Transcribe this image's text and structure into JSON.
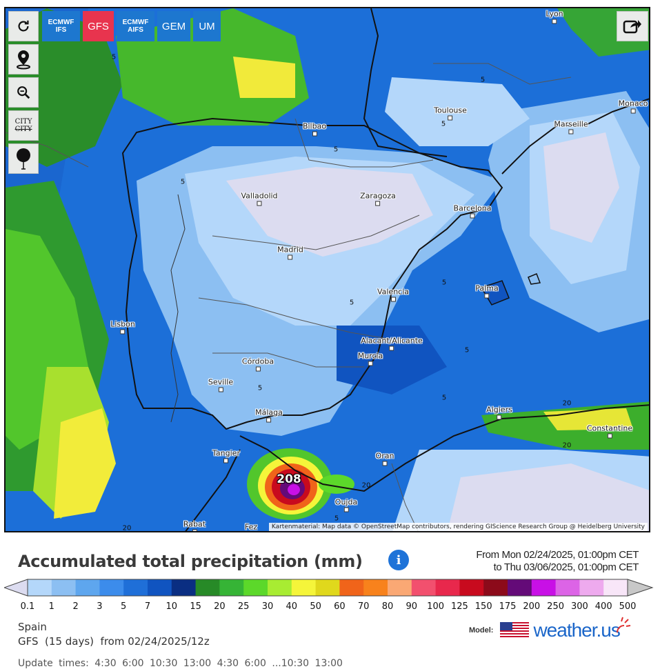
{
  "toolbar": {
    "refresh_icon": "refresh-icon",
    "models": [
      {
        "line1": "ECMWF",
        "line2": "IFS",
        "color": "#1d77cf",
        "active": false
      },
      {
        "line1": "GFS",
        "line2": "",
        "color": "#e8344e",
        "active": true
      },
      {
        "line1": "ECMWF",
        "line2": "AIFS",
        "color": "#1d77cf",
        "active": false
      },
      {
        "line1": "GEM",
        "line2": "",
        "color": "#1d77cf",
        "active": false
      },
      {
        "line1": "UM",
        "line2": "",
        "color": "#1d77cf",
        "active": false
      }
    ],
    "city_toggle_line1": "CITY",
    "city_toggle_line2": "CITY",
    "share_icon": "share-icon"
  },
  "map": {
    "cities": [
      {
        "name": "Lyon"
      },
      {
        "name": "Toulouse"
      },
      {
        "name": "Monaco"
      },
      {
        "name": "Marseille"
      },
      {
        "name": "Bilbao"
      },
      {
        "name": "Valladolid"
      },
      {
        "name": "Zaragoza"
      },
      {
        "name": "Barcelona"
      },
      {
        "name": "Madrid"
      },
      {
        "name": "Valencia"
      },
      {
        "name": "Palma"
      },
      {
        "name": "Lisbon"
      },
      {
        "name": "Alacant/Alicante"
      },
      {
        "name": "Murcia"
      },
      {
        "name": "Córdoba"
      },
      {
        "name": "Seville"
      },
      {
        "name": "Málaga"
      },
      {
        "name": "Algiers"
      },
      {
        "name": "Constantine"
      },
      {
        "name": "Tangier"
      },
      {
        "name": "Oran"
      },
      {
        "name": "Oujda"
      },
      {
        "name": "Rabat"
      },
      {
        "name": "Fez"
      }
    ],
    "contour_labels": [
      "5",
      "5",
      "5",
      "5",
      "5",
      "5",
      "5",
      "5",
      "5",
      "20",
      "20",
      "20",
      "5",
      "5",
      "20"
    ],
    "peak_value": "208",
    "attribution": "Kartenmaterial: Map data © OpenStreetMap contributors, rendering GIScience Research Group @ Heidelberg University"
  },
  "legend": {
    "title": "Accumulated total precipitation (mm)",
    "info_icon": "info-icon",
    "from_text": "From Mon 02/24/2025, 01:00pm CET",
    "to_text": "to Thu 03/06/2025, 01:00pm CET",
    "scale_colors": [
      "#dcdcf0",
      "#b4d7fa",
      "#8cbff2",
      "#5ea6ee",
      "#3c8ceb",
      "#1f6fd8",
      "#1054c0",
      "#0a2e82",
      "#278a27",
      "#36b436",
      "#5cd82a",
      "#a8ec32",
      "#f5f53a",
      "#e0d81c",
      "#f0641a",
      "#f8821c",
      "#faa874",
      "#f2506e",
      "#e8284c",
      "#c80a1e",
      "#8c0a1a",
      "#640a78",
      "#c810e6",
      "#dc64e6",
      "#eeaaee",
      "#f8e6f8",
      "#c8c8c8"
    ],
    "scale_labels": [
      "0.1",
      "1",
      "2",
      "3",
      "5",
      "7",
      "10",
      "15",
      "20",
      "25",
      "30",
      "40",
      "50",
      "60",
      "70",
      "80",
      "90",
      "100",
      "125",
      "150",
      "175",
      "200",
      "250",
      "300",
      "400",
      "500"
    ]
  },
  "footer": {
    "location": "Spain",
    "run_info": "GFS  (15 days)  from 02/24/2025/12z",
    "model_label": "Model:",
    "brand_name": "weather.us",
    "cutoff_text": "Update times: 4:30 6:00 10:30 13:00 4:30 6:00 ...10:30 13:00"
  }
}
